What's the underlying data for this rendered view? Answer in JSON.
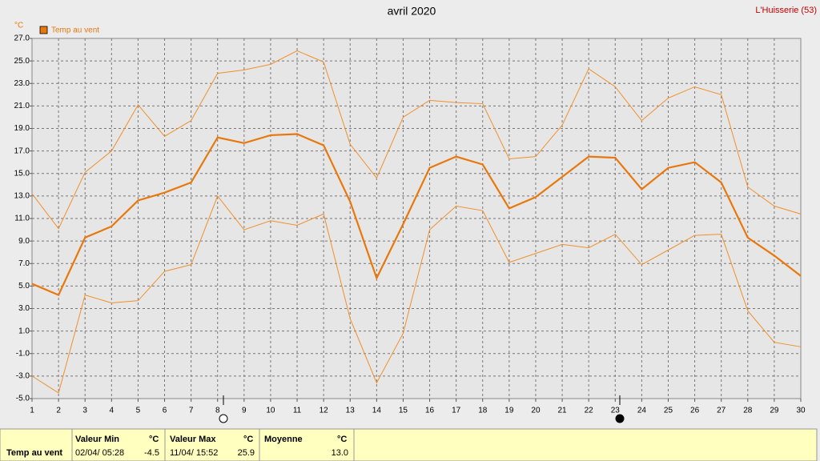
{
  "chart_data": {
    "type": "line",
    "title": "avril 2020",
    "station": "L'Huisserie (53)",
    "y_unit": "°C",
    "x": [
      1,
      2,
      3,
      4,
      5,
      6,
      7,
      8,
      9,
      10,
      11,
      12,
      13,
      14,
      15,
      16,
      17,
      18,
      19,
      20,
      21,
      22,
      23,
      24,
      25,
      26,
      27,
      28,
      29,
      30
    ],
    "xlim": [
      1,
      30
    ],
    "xticks": [
      1,
      2,
      3,
      4,
      5,
      6,
      7,
      8,
      9,
      10,
      11,
      12,
      13,
      14,
      15,
      16,
      17,
      18,
      19,
      20,
      21,
      22,
      23,
      24,
      25,
      26,
      27,
      28,
      29,
      30
    ],
    "ylim": [
      -5,
      27
    ],
    "yticks": [
      {
        "value": 27,
        "label": "27.0"
      },
      {
        "value": 25,
        "label": "25.0"
      },
      {
        "value": 23,
        "label": "23.0"
      },
      {
        "value": 21,
        "label": "21.0"
      },
      {
        "value": 19,
        "label": "19.0"
      },
      {
        "value": 17,
        "label": "17.0"
      },
      {
        "value": 15,
        "label": "15.0"
      },
      {
        "value": 13,
        "label": "13.0"
      },
      {
        "value": 11,
        "label": "11.0"
      },
      {
        "value": 9,
        "label": "9.0"
      },
      {
        "value": 7,
        "label": "7.0"
      },
      {
        "value": 5,
        "label": "5.0"
      },
      {
        "value": 3,
        "label": "3.0"
      },
      {
        "value": 1,
        "label": "1.0"
      },
      {
        "value": -1,
        "label": "-1.0"
      },
      {
        "value": -3,
        "label": "-3.0"
      },
      {
        "value": -5,
        "label": "-5.0"
      }
    ],
    "grid": true,
    "series": [
      {
        "name": "Temp au vent",
        "color": "#e8780c",
        "width": 2.2,
        "values": [
          5.2,
          4.2,
          9.3,
          10.3,
          12.6,
          13.3,
          14.2,
          18.2,
          17.7,
          18.4,
          18.5,
          17.5,
          12.5,
          5.7,
          10.5,
          15.5,
          16.5,
          15.8,
          11.9,
          12.9,
          14.7,
          16.5,
          16.4,
          13.6,
          15.5,
          16.0,
          14.2,
          9.3,
          7.7,
          5.9
        ]
      },
      {
        "color": "#f0902a",
        "width": 1,
        "values": [
          13.2,
          10.1,
          15.1,
          17.0,
          21.1,
          18.3,
          19.7,
          23.9,
          24.2,
          24.7,
          25.9,
          24.9,
          17.6,
          14.6,
          20.0,
          21.5,
          21.3,
          21.2,
          16.3,
          16.5,
          19.3,
          24.3,
          22.7,
          19.7,
          21.7,
          22.7,
          22.0,
          13.8,
          12.1,
          11.4
        ]
      },
      {
        "color": "#f0902a",
        "width": 1,
        "values": [
          -3.0,
          -4.5,
          4.2,
          3.5,
          3.7,
          6.3,
          6.9,
          13.0,
          10.0,
          10.8,
          10.4,
          11.4,
          2.1,
          -3.6,
          0.8,
          10.0,
          12.1,
          11.7,
          7.1,
          7.9,
          8.7,
          8.4,
          9.6,
          6.9,
          8.2,
          9.5,
          9.6,
          2.8,
          0.0,
          -0.4
        ]
      }
    ]
  },
  "stats": {
    "row_label": "Temp au vent",
    "min": {
      "header": "Valeur Min",
      "unit": "°C",
      "date": "02/04/ 05:28",
      "value": "-4.5"
    },
    "max": {
      "header": "Valeur Max",
      "unit": "°C",
      "date": "11/04/ 15:52",
      "value": "25.9"
    },
    "mean": {
      "header": "Moyenne",
      "unit": "°C",
      "value": "13.0"
    }
  }
}
